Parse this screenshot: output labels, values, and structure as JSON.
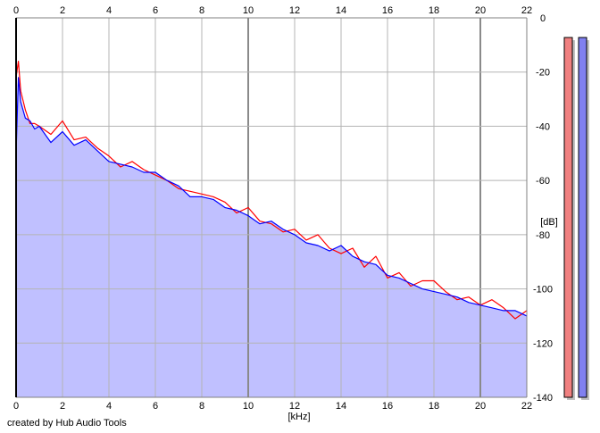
{
  "chart_data": {
    "type": "area",
    "xlabel": "[kHz]",
    "ylabel": "[dB]",
    "xlim": [
      0,
      22
    ],
    "ylim": [
      -140,
      0
    ],
    "x_ticks": [
      0,
      2,
      4,
      6,
      8,
      10,
      12,
      14,
      16,
      18,
      20,
      22
    ],
    "y_ticks": [
      0,
      -20,
      -40,
      -60,
      -80,
      -100,
      -120,
      -140
    ],
    "grid": true,
    "fill_color": "#c0c0ff",
    "series": [
      {
        "color": "#ff0000",
        "x": [
          0,
          0.1,
          0.2,
          0.4,
          0.6,
          0.8,
          1,
          1.5,
          2,
          2.5,
          3,
          3.5,
          4,
          4.5,
          5,
          5.5,
          6,
          6.5,
          7,
          7.5,
          8,
          8.5,
          9,
          9.5,
          10,
          10.5,
          11,
          11.5,
          12,
          12.5,
          13,
          13.5,
          14,
          14.5,
          15,
          15.5,
          16,
          16.5,
          17,
          17.5,
          18,
          18.5,
          19,
          19.5,
          20,
          20.5,
          21,
          21.5,
          22
        ],
        "values": [
          -22,
          -16,
          -27,
          -34,
          -39,
          -39,
          -40,
          -43,
          -38,
          -45,
          -44,
          -48,
          -51,
          -55,
          -53,
          -56,
          -58,
          -60,
          -63,
          -64,
          -65,
          -66,
          -68,
          -72,
          -70,
          -75,
          -76,
          -79,
          -78,
          -82,
          -80,
          -85,
          -87,
          -85,
          -92,
          -88,
          -96,
          -94,
          -99,
          -97,
          -97,
          -101,
          -104,
          -103,
          -106,
          -104,
          -107,
          -111,
          -108
        ]
      },
      {
        "color": "#0000ff",
        "x": [
          0,
          0.1,
          0.2,
          0.4,
          0.6,
          0.8,
          1,
          1.5,
          2,
          2.5,
          3,
          3.5,
          4,
          4.5,
          5,
          5.5,
          6,
          6.5,
          7,
          7.5,
          8,
          8.5,
          9,
          9.5,
          10,
          10.5,
          11,
          11.5,
          12,
          12.5,
          13,
          13.5,
          14,
          14.5,
          15,
          15.5,
          16,
          16.5,
          17,
          17.5,
          18,
          18.5,
          19,
          19.5,
          20,
          20.5,
          21,
          21.5,
          22
        ],
        "values": [
          -50,
          -22,
          -31,
          -37,
          -38,
          -41,
          -40,
          -46,
          -42,
          -47,
          -45,
          -49,
          -53,
          -54,
          -55,
          -57,
          -57,
          -60,
          -62,
          -66,
          -66,
          -67,
          -70,
          -71,
          -73,
          -76,
          -75,
          -78,
          -80,
          -83,
          -84,
          -86,
          -84,
          -88,
          -90,
          -91,
          -95,
          -96,
          -98,
          -100,
          -101,
          -102,
          -103,
          -105,
          -106,
          -107,
          -108,
          -108,
          -110
        ]
      }
    ],
    "level_meters": [
      {
        "name": "left",
        "color": "#f08080",
        "level_db": 0
      },
      {
        "name": "right",
        "color": "#8080f0",
        "level_db": 0
      }
    ]
  },
  "footer": {
    "credit": "created by Hub Audio Tools"
  }
}
